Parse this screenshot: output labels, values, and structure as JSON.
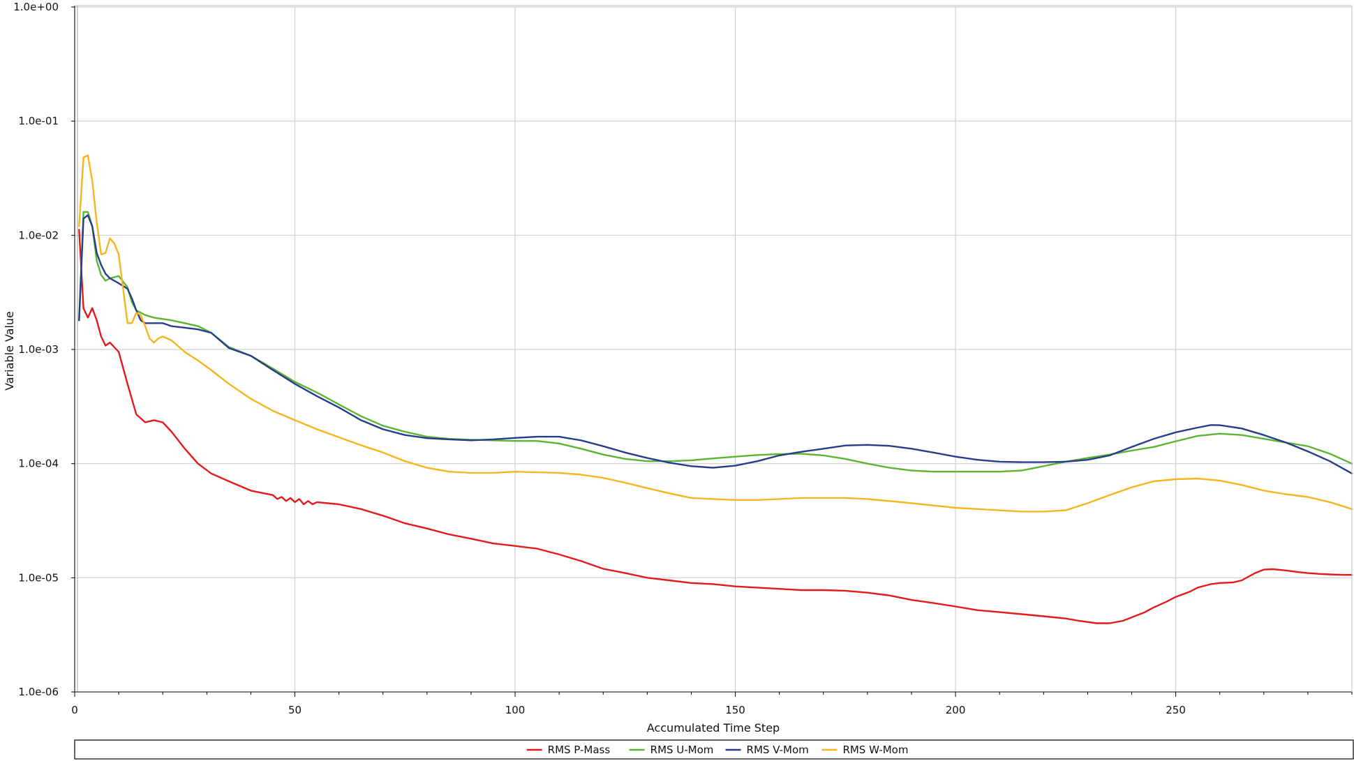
{
  "chart_data": {
    "type": "line",
    "xlabel": "Accumulated Time Step",
    "ylabel": "Variable Value",
    "xlim": [
      0,
      290
    ],
    "ylim": [
      1e-06,
      1
    ],
    "yscale": "log",
    "grid": true,
    "legend_position": "bottom",
    "x_ticks": [
      0,
      50,
      100,
      150,
      200,
      250
    ],
    "x_tick_labels": [
      "0",
      "50",
      "100",
      "150",
      "200",
      "250"
    ],
    "y_ticks": [
      1,
      0.1,
      0.01,
      0.001,
      0.0001,
      1e-05,
      1e-06
    ],
    "y_tick_labels": [
      "1.0e+00",
      "1.0e-01",
      "1.0e-02",
      "1.0e-03",
      "1.0e-04",
      "1.0e-05",
      "1.0e-06"
    ],
    "series": [
      {
        "name": "RMS P-Mass",
        "color": "#e31a1c",
        "x": [
          1,
          2,
          3,
          4,
          5,
          6,
          7,
          8,
          10,
          12,
          14,
          16,
          18,
          20,
          22,
          25,
          28,
          31,
          35,
          40,
          45,
          46,
          47,
          48,
          49,
          50,
          51,
          52,
          53,
          54,
          55,
          60,
          65,
          70,
          75,
          80,
          85,
          90,
          95,
          100,
          105,
          110,
          115,
          120,
          125,
          130,
          135,
          140,
          145,
          150,
          155,
          160,
          165,
          170,
          175,
          180,
          185,
          190,
          195,
          200,
          205,
          210,
          215,
          220,
          225,
          228,
          230,
          232,
          235,
          238,
          240,
          243,
          245,
          248,
          250,
          253,
          255,
          258,
          260,
          263,
          265,
          268,
          270,
          272,
          275,
          278,
          280,
          283,
          285,
          288,
          290
        ],
        "y": [
          0.0112,
          0.0023,
          0.0019,
          0.0023,
          0.0018,
          0.0013,
          0.00108,
          0.00115,
          0.00095,
          0.0005,
          0.00027,
          0.00023,
          0.00024,
          0.00023,
          0.00019,
          0.000135,
          0.0001,
          8.2e-05,
          7e-05,
          5.8e-05,
          5.3e-05,
          4.9e-05,
          5.1e-05,
          4.7e-05,
          5e-05,
          4.6e-05,
          4.9e-05,
          4.4e-05,
          4.7e-05,
          4.4e-05,
          4.6e-05,
          4.4e-05,
          4e-05,
          3.5e-05,
          3e-05,
          2.7e-05,
          2.4e-05,
          2.2e-05,
          2e-05,
          1.9e-05,
          1.8e-05,
          1.6e-05,
          1.4e-05,
          1.2e-05,
          1.1e-05,
          1e-05,
          9.5e-06,
          9e-06,
          8.8e-06,
          8.4e-06,
          8.2e-06,
          8e-06,
          7.8e-06,
          7.8e-06,
          7.7e-06,
          7.4e-06,
          7e-06,
          6.4e-06,
          6e-06,
          5.6e-06,
          5.2e-06,
          5e-06,
          4.8e-06,
          4.6e-06,
          4.4e-06,
          4.2e-06,
          4.1e-06,
          4e-06,
          4e-06,
          4.2e-06,
          4.5e-06,
          5e-06,
          5.5e-06,
          6.2e-06,
          6.8e-06,
          7.5e-06,
          8.2e-06,
          8.8e-06,
          9e-06,
          9.1e-06,
          9.5e-06,
          1.1e-05,
          1.18e-05,
          1.19e-05,
          1.16e-05,
          1.12e-05,
          1.1e-05,
          1.08e-05,
          1.07e-05,
          1.06e-05,
          1.06e-05
        ]
      },
      {
        "name": "RMS U-Mom",
        "color": "#5bb433",
        "x": [
          1,
          2,
          3,
          4,
          5,
          6,
          7,
          8,
          10,
          12,
          13,
          14,
          15,
          16,
          18,
          20,
          22,
          25,
          28,
          31,
          35,
          40,
          45,
          50,
          55,
          60,
          65,
          70,
          75,
          80,
          85,
          90,
          95,
          100,
          105,
          110,
          115,
          120,
          125,
          130,
          135,
          140,
          145,
          150,
          155,
          160,
          165,
          170,
          175,
          180,
          185,
          190,
          195,
          200,
          205,
          210,
          215,
          220,
          225,
          230,
          235,
          240,
          245,
          250,
          255,
          260,
          265,
          270,
          275,
          280,
          285,
          290
        ],
        "y": [
          0.0018,
          0.016,
          0.016,
          0.012,
          0.006,
          0.0045,
          0.004,
          0.0042,
          0.0044,
          0.0035,
          0.0026,
          0.0022,
          0.0021,
          0.002,
          0.0019,
          0.00185,
          0.0018,
          0.0017,
          0.0016,
          0.0014,
          0.00105,
          0.00088,
          0.00068,
          0.00052,
          0.00042,
          0.00033,
          0.00026,
          0.000215,
          0.00019,
          0.000172,
          0.000165,
          0.000162,
          0.00016,
          0.000158,
          0.000158,
          0.00015,
          0.000135,
          0.00012,
          0.00011,
          0.000105,
          0.000105,
          0.000107,
          0.000111,
          0.000115,
          0.000119,
          0.000121,
          0.000122,
          0.000118,
          0.00011,
          0.0001,
          9.2e-05,
          8.7e-05,
          8.5e-05,
          8.5e-05,
          8.5e-05,
          8.5e-05,
          8.7e-05,
          9.5e-05,
          0.000104,
          0.000112,
          0.00012,
          0.00013,
          0.00014,
          0.000157,
          0.000175,
          0.000183,
          0.000178,
          0.000165,
          0.000153,
          0.000142,
          0.000122,
          0.0001
        ]
      },
      {
        "name": "RMS V-Mom",
        "color": "#283c8c",
        "x": [
          1,
          2,
          3,
          4,
          5,
          6,
          7,
          8,
          10,
          12,
          13,
          14,
          15,
          16,
          18,
          20,
          22,
          25,
          28,
          31,
          35,
          40,
          45,
          50,
          55,
          60,
          65,
          70,
          75,
          80,
          85,
          90,
          95,
          100,
          105,
          110,
          115,
          120,
          125,
          130,
          135,
          140,
          145,
          150,
          155,
          160,
          165,
          170,
          175,
          180,
          185,
          190,
          195,
          200,
          205,
          210,
          215,
          220,
          225,
          230,
          235,
          240,
          245,
          250,
          255,
          258,
          260,
          265,
          270,
          275,
          280,
          285,
          290
        ],
        "y": [
          0.0018,
          0.014,
          0.015,
          0.012,
          0.007,
          0.0055,
          0.0046,
          0.0042,
          0.0038,
          0.0034,
          0.0028,
          0.0022,
          0.0018,
          0.0017,
          0.0017,
          0.0017,
          0.0016,
          0.00155,
          0.0015,
          0.0014,
          0.00103,
          0.00088,
          0.00066,
          0.0005,
          0.00039,
          0.00031,
          0.00024,
          0.0002,
          0.000178,
          0.000167,
          0.000163,
          0.00016,
          0.000163,
          0.000168,
          0.000172,
          0.000172,
          0.00016,
          0.000142,
          0.000125,
          0.000112,
          0.000102,
          9.5e-05,
          9.2e-05,
          9.6e-05,
          0.000105,
          0.000118,
          0.000127,
          0.000135,
          0.000144,
          0.000146,
          0.000143,
          0.000135,
          0.000125,
          0.000115,
          0.000108,
          0.000104,
          0.000103,
          0.000103,
          0.000104,
          0.000108,
          0.000118,
          0.00014,
          0.000165,
          0.000188,
          0.000207,
          0.000218,
          0.000217,
          0.000203,
          0.000178,
          0.000153,
          0.000128,
          0.000105,
          8.2e-05
        ]
      },
      {
        "name": "RMS W-Mom",
        "color": "#f5b51c",
        "x": [
          1,
          2,
          3,
          4,
          5,
          6,
          7,
          8,
          9,
          10,
          11,
          12,
          13,
          14,
          15,
          16,
          17,
          18,
          19,
          20,
          22,
          25,
          28,
          31,
          35,
          40,
          45,
          50,
          55,
          60,
          65,
          70,
          75,
          80,
          85,
          90,
          95,
          100,
          105,
          110,
          115,
          120,
          125,
          130,
          135,
          140,
          145,
          150,
          155,
          160,
          165,
          170,
          175,
          180,
          185,
          190,
          195,
          200,
          205,
          210,
          215,
          220,
          225,
          230,
          235,
          240,
          245,
          250,
          255,
          260,
          265,
          270,
          275,
          280,
          285,
          290
        ],
        "y": [
          0.012,
          0.048,
          0.05,
          0.03,
          0.013,
          0.0068,
          0.007,
          0.0094,
          0.0085,
          0.0068,
          0.0034,
          0.0017,
          0.0017,
          0.0021,
          0.002,
          0.0016,
          0.00125,
          0.00115,
          0.00125,
          0.0013,
          0.0012,
          0.00095,
          0.0008,
          0.00066,
          0.0005,
          0.00037,
          0.00029,
          0.00024,
          0.0002,
          0.00017,
          0.000145,
          0.000125,
          0.000105,
          9.2e-05,
          8.5e-05,
          8.3e-05,
          8.3e-05,
          8.5e-05,
          8.4e-05,
          8.3e-05,
          8e-05,
          7.5e-05,
          6.8e-05,
          6.1e-05,
          5.5e-05,
          5e-05,
          4.9e-05,
          4.8e-05,
          4.8e-05,
          4.9e-05,
          5e-05,
          5e-05,
          5e-05,
          4.9e-05,
          4.7e-05,
          4.5e-05,
          4.3e-05,
          4.1e-05,
          4e-05,
          3.9e-05,
          3.8e-05,
          3.8e-05,
          3.9e-05,
          4.5e-05,
          5.3e-05,
          6.2e-05,
          7e-05,
          7.3e-05,
          7.4e-05,
          7.1e-05,
          6.5e-05,
          5.8e-05,
          5.4e-05,
          5.1e-05,
          4.6e-05,
          4e-05
        ]
      }
    ]
  }
}
